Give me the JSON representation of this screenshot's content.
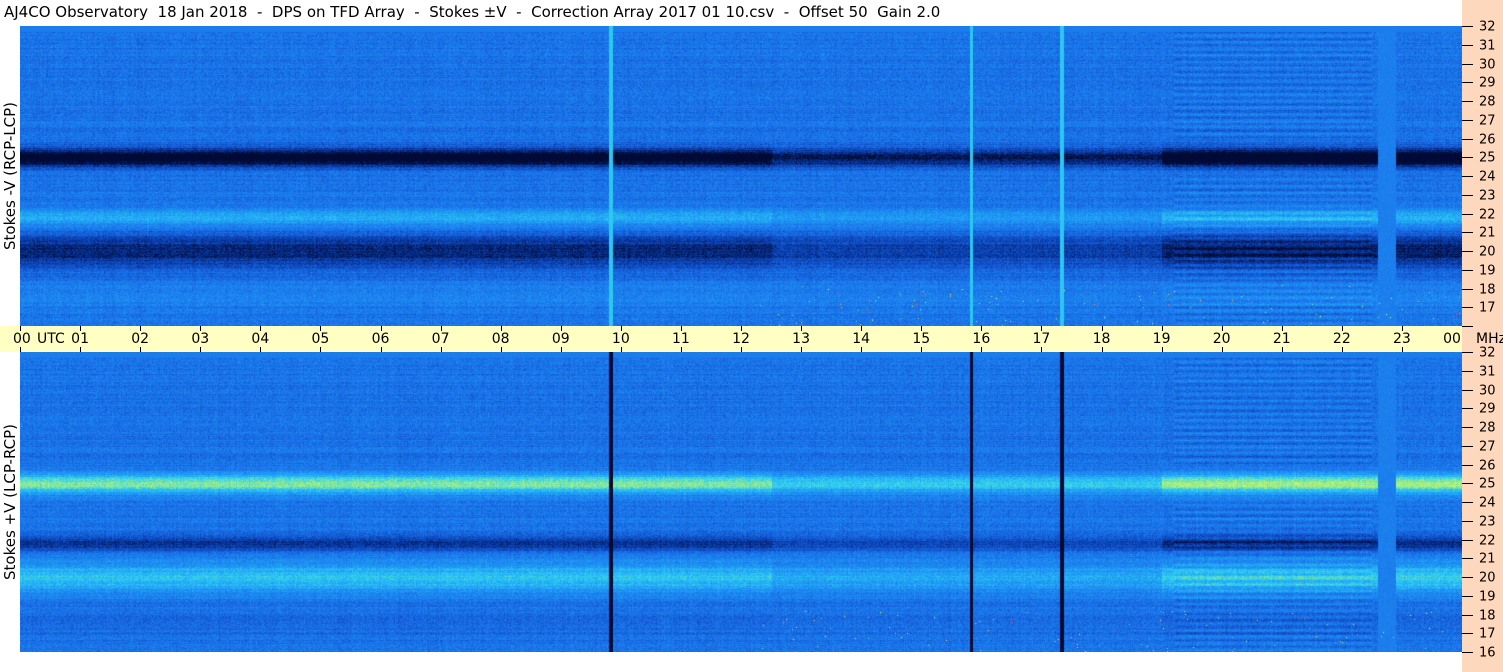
{
  "title": "AJ4CO Observatory  18 Jan 2018  -  DPS on TFD Array  -  Stokes ±V  -  Correction Array 2017 01 10.csv  -  Offset 50  Gain 2.0",
  "chart_data": {
    "type": "heatmap",
    "panels": [
      {
        "label": "Stokes -V (RCP-LCP)",
        "ylim": [
          16,
          32
        ]
      },
      {
        "label": "Stokes +V (LCP-RCP)",
        "ylim": [
          16,
          32
        ]
      }
    ],
    "x_unit": "UTC",
    "xlim": [
      0,
      24
    ],
    "x_ticks": [
      "00",
      "01",
      "02",
      "03",
      "04",
      "05",
      "06",
      "07",
      "08",
      "09",
      "10",
      "11",
      "12",
      "13",
      "14",
      "15",
      "16",
      "17",
      "18",
      "19",
      "20",
      "21",
      "22",
      "23",
      "00"
    ],
    "y_unit": "MHz",
    "y_ticks": [
      32,
      31,
      30,
      29,
      28,
      27,
      26,
      25,
      24,
      23,
      22,
      21,
      20,
      19,
      18,
      17,
      16
    ],
    "colormap": [
      "#000a35",
      "#0a3fb0",
      "#1a6ee8",
      "#1e9af5",
      "#30d0f0",
      "#b0f070",
      "#ffff40",
      "#ff3050"
    ],
    "axis_colors": {
      "time_axis": "#ffffc4",
      "freq_axis": "#fdd8bd"
    }
  }
}
